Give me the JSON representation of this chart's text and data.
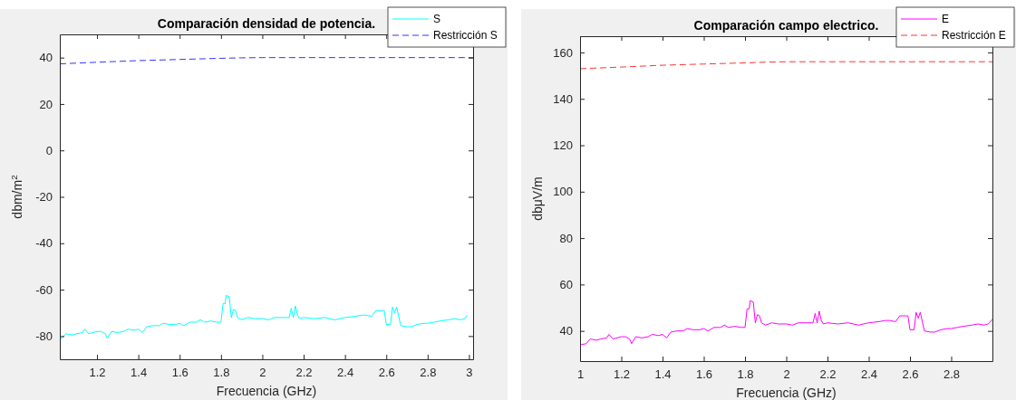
{
  "chart_data": [
    {
      "type": "line",
      "title": "Comparación densidad de potencia.",
      "xlabel": "Frecuencia (GHz)",
      "ylabel": "dbm/m$^{2}$",
      "xlim": [
        1.02,
        3.02
      ],
      "xticks": [
        1.2,
        1.4,
        1.6,
        1.8,
        2,
        2.2,
        2.4,
        2.6,
        2.8,
        3
      ],
      "ylim": [
        -90,
        50
      ],
      "yticks": [
        -80,
        -60,
        -40,
        -20,
        0,
        20,
        40
      ],
      "grid": false,
      "legend": "top right",
      "series": [
        {
          "name": "S",
          "color": "#00ffff",
          "line_style": "solid",
          "x": [
            1.02,
            1.03,
            1.05,
            1.08,
            1.1,
            1.13,
            1.14,
            1.16,
            1.2,
            1.22,
            1.24,
            1.25,
            1.27,
            1.3,
            1.33,
            1.35,
            1.38,
            1.4,
            1.42,
            1.44,
            1.47,
            1.5,
            1.52,
            1.55,
            1.58,
            1.6,
            1.62,
            1.65,
            1.68,
            1.7,
            1.72,
            1.75,
            1.78,
            1.8,
            1.81,
            1.82,
            1.825,
            1.84,
            1.85,
            1.86,
            1.87,
            1.88,
            1.9,
            1.93,
            1.96,
            2,
            2.03,
            2.06,
            2.1,
            2.13,
            2.14,
            2.15,
            2.16,
            2.17,
            2.18,
            2.2,
            2.25,
            2.3,
            2.35,
            2.4,
            2.45,
            2.48,
            2.5,
            2.53,
            2.55,
            2.58,
            2.59,
            2.6,
            2.62,
            2.63,
            2.64,
            2.65,
            2.67,
            2.7,
            2.72,
            2.75,
            2.78,
            2.8,
            2.83,
            2.86,
            2.9,
            2.93,
            2.96,
            2.98,
            2.99
          ],
          "values": [
            -80.5,
            -81,
            -79,
            -79.5,
            -79,
            -78.5,
            -77,
            -79,
            -78,
            -78,
            -79,
            -81,
            -78,
            -78.5,
            -78,
            -77,
            -77.5,
            -77,
            -78.5,
            -76,
            -75.5,
            -75.5,
            -74.5,
            -75,
            -75,
            -74.5,
            -75.5,
            -74,
            -74,
            -73,
            -74,
            -73.5,
            -74,
            -74,
            -66,
            -66,
            -62.5,
            -63,
            -72,
            -68.5,
            -69,
            -72,
            -73,
            -72,
            -72.5,
            -72.5,
            -73,
            -72,
            -72,
            -72,
            -68,
            -72,
            -67,
            -71,
            -72.5,
            -72,
            -72.5,
            -72,
            -73,
            -72,
            -71.5,
            -71,
            -71,
            -71.5,
            -69,
            -69,
            -69,
            -75,
            -75,
            -67.5,
            -70,
            -67.5,
            -75.5,
            -76,
            -76,
            -75,
            -74.5,
            -74.5,
            -74,
            -73.5,
            -73,
            -72.5,
            -73,
            -72.5,
            -71
          ]
        },
        {
          "name": "Restricción S",
          "color": "#3333ff",
          "line_style": "dashed",
          "x": [
            1.02,
            1.2,
            1.4,
            1.6,
            1.8,
            1.9,
            2,
            2.2,
            2.6,
            3.02
          ],
          "values": [
            37.3,
            38,
            38.7,
            39.2,
            39.7,
            39.9,
            40,
            40,
            40,
            40
          ]
        }
      ]
    },
    {
      "type": "line",
      "title": "Comparación campo electrico.",
      "xlabel": "Frecuencia (GHz)",
      "ylabel": "dbμV/m",
      "xlim": [
        1,
        3
      ],
      "xticks": [
        1,
        1.2,
        1.4,
        1.6,
        1.8,
        2,
        2.2,
        2.4,
        2.6,
        2.8
      ],
      "ylim": [
        27,
        167
      ],
      "yticks": [
        40,
        60,
        80,
        100,
        120,
        140,
        160
      ],
      "grid": false,
      "legend": "top right",
      "series": [
        {
          "name": "E",
          "color": "#ff00ff",
          "line_style": "solid",
          "x": [
            1,
            1.03,
            1.05,
            1.08,
            1.1,
            1.13,
            1.14,
            1.16,
            1.2,
            1.22,
            1.24,
            1.25,
            1.27,
            1.3,
            1.33,
            1.35,
            1.38,
            1.4,
            1.42,
            1.44,
            1.47,
            1.5,
            1.52,
            1.55,
            1.58,
            1.6,
            1.62,
            1.65,
            1.68,
            1.7,
            1.72,
            1.75,
            1.78,
            1.8,
            1.81,
            1.82,
            1.825,
            1.84,
            1.85,
            1.86,
            1.87,
            1.88,
            1.9,
            1.93,
            1.96,
            2,
            2.03,
            2.06,
            2.1,
            2.13,
            2.14,
            2.15,
            2.16,
            2.17,
            2.18,
            2.2,
            2.25,
            2.3,
            2.35,
            2.4,
            2.45,
            2.48,
            2.5,
            2.53,
            2.55,
            2.58,
            2.59,
            2.6,
            2.62,
            2.63,
            2.64,
            2.65,
            2.67,
            2.7,
            2.72,
            2.75,
            2.78,
            2.8,
            2.83,
            2.86,
            2.9,
            2.93,
            2.96,
            2.98,
            3
          ],
          "values": [
            34,
            34.5,
            36.5,
            36,
            36.5,
            37,
            38.5,
            36.5,
            37.5,
            37.5,
            36.5,
            34.5,
            37.5,
            37,
            37.5,
            38.5,
            38,
            38.5,
            37,
            39.5,
            40,
            40,
            41,
            40.5,
            40.5,
            41,
            40,
            41.5,
            41.5,
            42.5,
            41.5,
            42,
            41.5,
            41.5,
            49.5,
            49.5,
            53,
            52.5,
            43.5,
            47,
            46.5,
            43.5,
            42.5,
            43.5,
            43,
            43,
            42.5,
            43.5,
            43.5,
            43.5,
            47.5,
            43.5,
            48.5,
            44.5,
            43,
            43.5,
            43,
            43.5,
            42.5,
            43.5,
            44,
            44.5,
            44.5,
            44,
            46.5,
            46.5,
            46.5,
            40.5,
            40.5,
            48,
            45.5,
            48,
            40,
            39.5,
            39.5,
            40.5,
            41,
            41,
            41.5,
            42,
            42.5,
            43,
            42.5,
            43,
            45
          ]
        },
        {
          "name": "Restricción E",
          "color": "#ff3333",
          "line_style": "dashed",
          "x": [
            1,
            1.2,
            1.4,
            1.6,
            1.8,
            1.9,
            2,
            2.2,
            2.6,
            3
          ],
          "values": [
            153,
            153.7,
            154.5,
            155,
            155.5,
            155.8,
            156,
            156,
            156,
            156
          ]
        }
      ]
    }
  ]
}
